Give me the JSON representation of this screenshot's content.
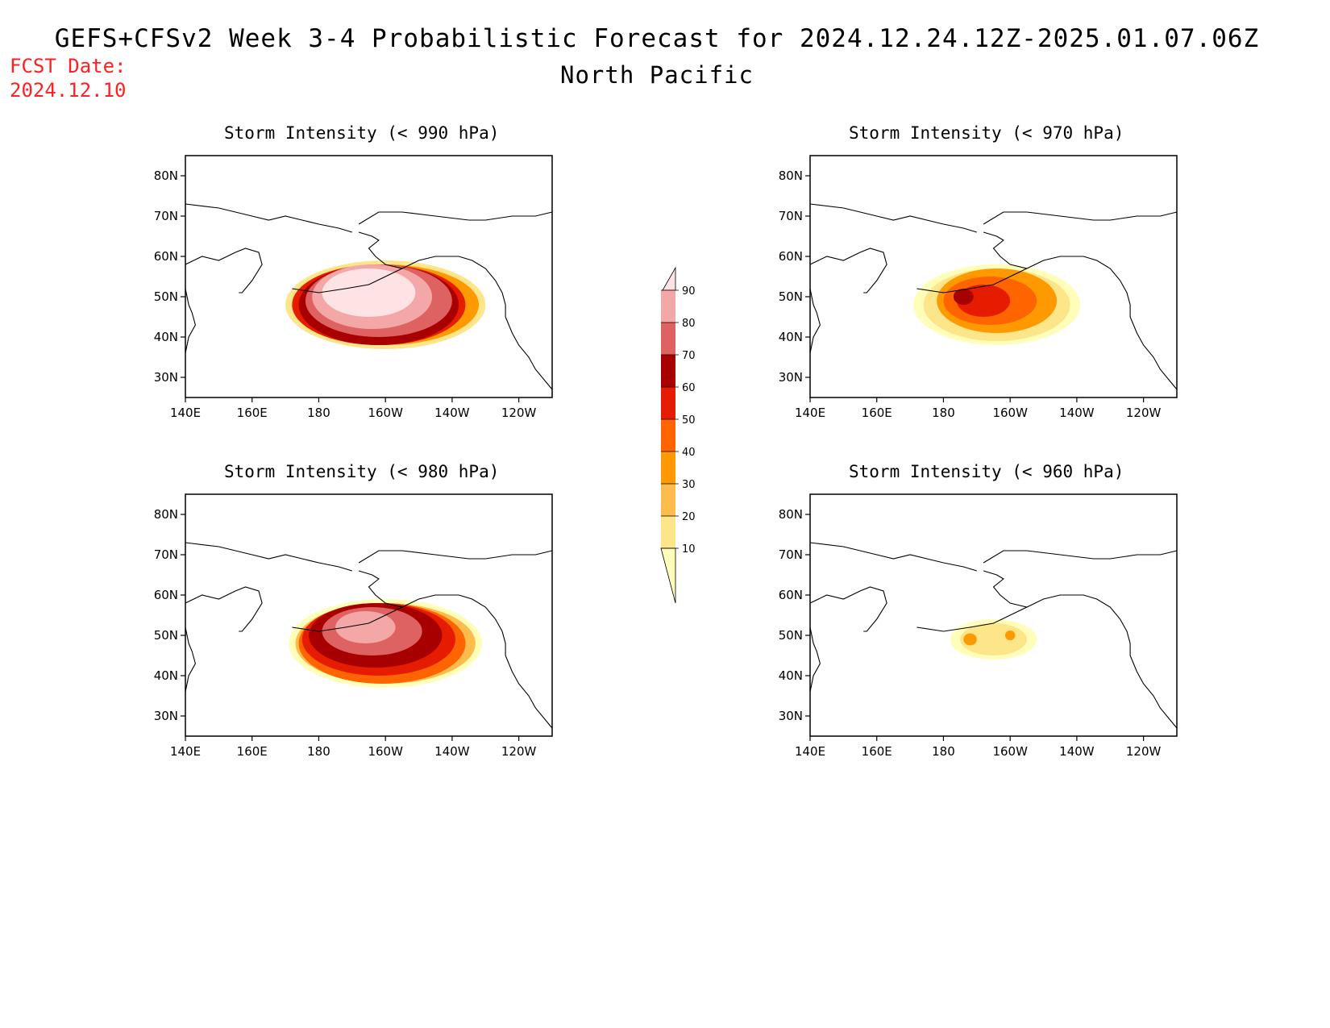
{
  "header": {
    "title": "GEFS+CFSv2 Week 3-4 Probabilistic Forecast for 2024.12.24.12Z-2025.01.07.06Z",
    "region": "North Pacific",
    "fcst_label": "FCST Date:",
    "fcst_date": "2024.12.10"
  },
  "axes": {
    "lat_ticks": [
      "80N",
      "70N",
      "60N",
      "50N",
      "40N",
      "30N"
    ],
    "lat_values": [
      80,
      70,
      60,
      50,
      40,
      30
    ],
    "lon_ticks": [
      "140E",
      "160E",
      "180",
      "160W",
      "140W",
      "120W"
    ],
    "lon_values": [
      140,
      160,
      180,
      200,
      220,
      240
    ],
    "lon_range": [
      140,
      250
    ],
    "lat_range": [
      25,
      85
    ]
  },
  "colorbar": {
    "levels": [
      "10",
      "20",
      "30",
      "40",
      "50",
      "60",
      "70",
      "80",
      "90"
    ],
    "colors": [
      "#fffeb8",
      "#fde58a",
      "#fdbc4b",
      "#fe9a00",
      "#fe6500",
      "#e61c00",
      "#a80000",
      "#de6262",
      "#f4a7a7",
      "#fde3e3"
    ]
  },
  "panels": [
    {
      "id": "p990",
      "title": "Storm Intensity (< 990 hPa)",
      "threshold_hpa": 990,
      "coverage": "high",
      "peak_probability": ">90"
    },
    {
      "id": "p970",
      "title": "Storm Intensity (< 970 hPa)",
      "threshold_hpa": 970,
      "coverage": "medium",
      "peak_probability": "60-70"
    },
    {
      "id": "p980",
      "title": "Storm Intensity (< 980 hPa)",
      "threshold_hpa": 980,
      "coverage": "high",
      "peak_probability": "80-90"
    },
    {
      "id": "p960",
      "title": "Storm Intensity (< 960 hPa)",
      "threshold_hpa": 960,
      "coverage": "low",
      "peak_probability": "30-40"
    }
  ]
}
